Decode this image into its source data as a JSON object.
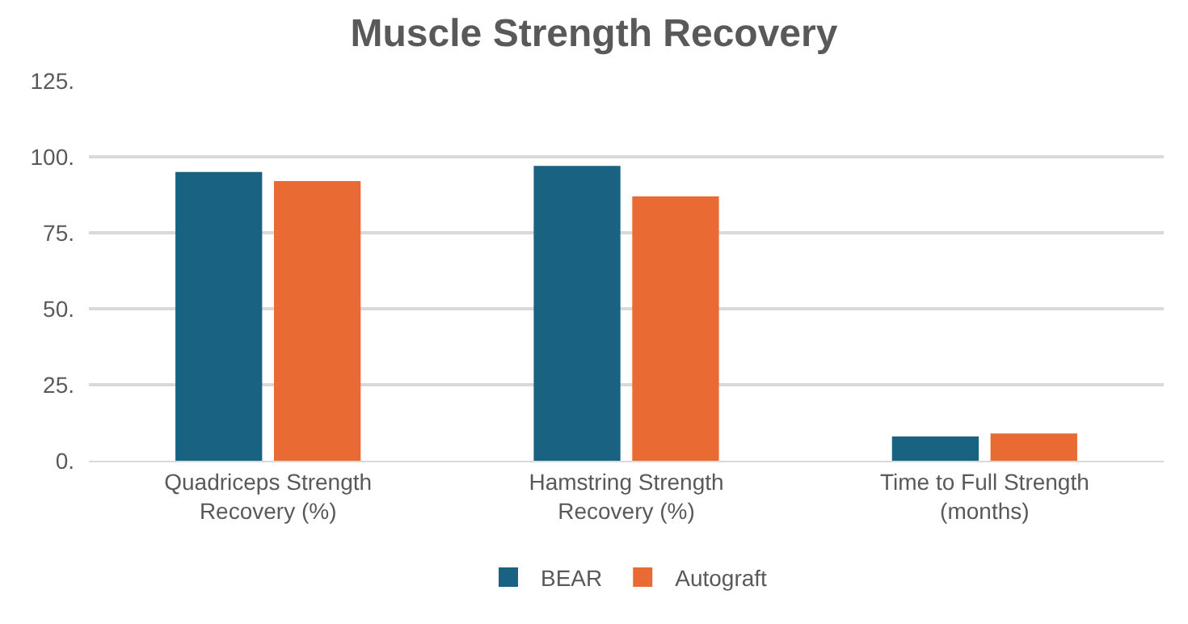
{
  "chart_data": {
    "type": "bar",
    "title": "Muscle Strength Recovery",
    "categories": [
      "Quadriceps Strength\nRecovery (%)",
      "Hamstring Strength\nRecovery (%)",
      "Time to Full Strength\n(months)"
    ],
    "series": [
      {
        "name": "BEAR",
        "color": "#1a6282",
        "values": [
          95,
          97,
          8
        ]
      },
      {
        "name": "Autograft",
        "color": "#e96a33",
        "values": [
          92,
          87,
          9
        ]
      }
    ],
    "ylim": [
      0,
      125
    ],
    "yticks": [
      {
        "value": 0,
        "label": "0."
      },
      {
        "value": 25,
        "label": "25."
      },
      {
        "value": 50,
        "label": "50."
      },
      {
        "value": 75,
        "label": "75."
      },
      {
        "value": 100,
        "label": "100."
      },
      {
        "value": 125,
        "label": "125."
      }
    ],
    "grid": "y",
    "legend": "bottom"
  }
}
